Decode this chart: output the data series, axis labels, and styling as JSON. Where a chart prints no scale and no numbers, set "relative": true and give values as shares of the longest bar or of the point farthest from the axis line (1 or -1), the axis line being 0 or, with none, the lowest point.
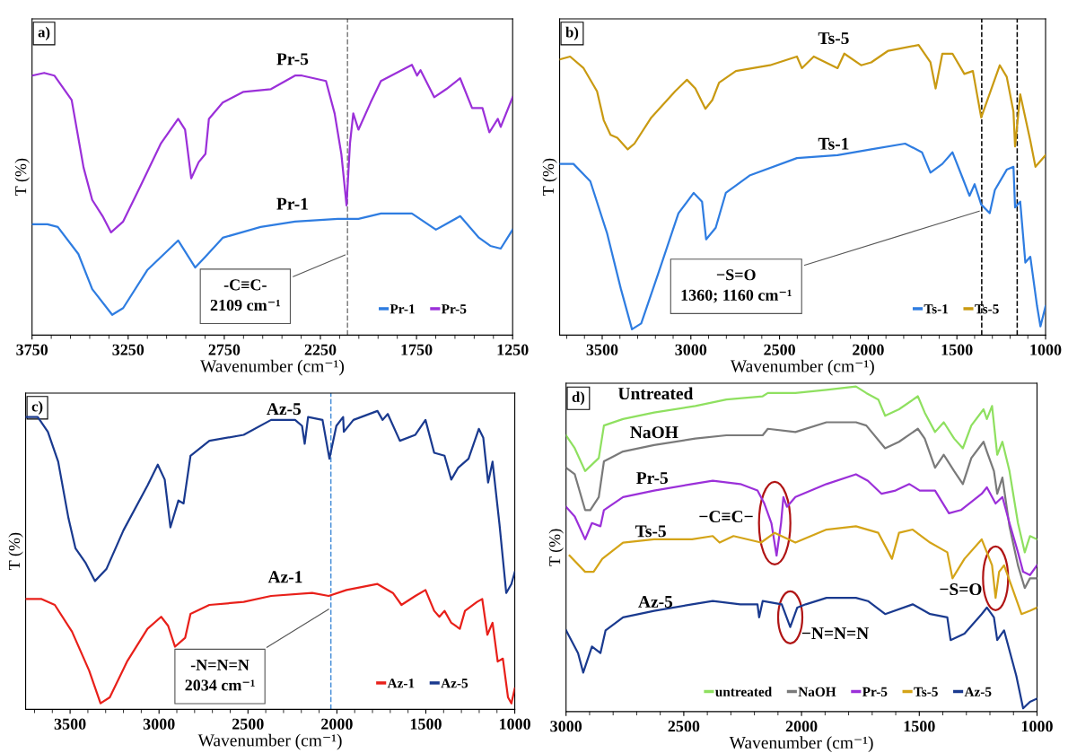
{
  "chart_data": [
    {
      "type": "line",
      "title": "a)",
      "xlabel": "Wavenumber (cm⁻¹)",
      "ylabel": "T (%)",
      "relative": true,
      "xlim": [
        3750,
        1250
      ],
      "xticks": [
        3750,
        3250,
        2750,
        2250,
        1750,
        1250
      ],
      "legend": "bottom right",
      "line_style": "solid",
      "series": [
        {
          "name": "Pr-1",
          "color": "#2f7de1",
          "x": [
            3750,
            3670,
            3616,
            3509,
            3437,
            3333,
            3276,
            3151,
            2990,
            2901,
            2848,
            2758,
            2561,
            2382,
            2159,
            2052,
            1935,
            1774,
            1649,
            1523,
            1425,
            1366,
            1312,
            1250
          ],
          "values": [
            0.41,
            0.41,
            0.4,
            0.3,
            0.17,
            0.075,
            0.1,
            0.24,
            0.35,
            0.25,
            0.29,
            0.36,
            0.4,
            0.42,
            0.43,
            0.43,
            0.45,
            0.45,
            0.39,
            0.44,
            0.36,
            0.33,
            0.32,
            0.39
          ]
        },
        {
          "name": "Pr-5",
          "color": "#9b30d9",
          "x": [
            3750,
            3687,
            3634,
            3544,
            3482,
            3437,
            3383,
            3339,
            3276,
            3187,
            3079,
            2990,
            2954,
            2922,
            2883,
            2848,
            2830,
            2758,
            2650,
            2507,
            2382,
            2346,
            2221,
            2176,
            2141,
            2114,
            2096,
            2079,
            2052,
            1989,
            1935,
            1774,
            1747,
            1729,
            1658,
            1595,
            1523,
            1461,
            1407,
            1371,
            1327,
            1312,
            1250
          ],
          "values": [
            0.96,
            0.97,
            0.96,
            0.87,
            0.62,
            0.5,
            0.44,
            0.38,
            0.42,
            0.55,
            0.71,
            0.8,
            0.76,
            0.58,
            0.64,
            0.67,
            0.8,
            0.86,
            0.9,
            0.91,
            0.96,
            0.96,
            0.94,
            0.82,
            0.67,
            0.48,
            0.71,
            0.82,
            0.76,
            0.86,
            0.94,
            1.0,
            0.96,
            0.98,
            0.88,
            0.91,
            0.95,
            0.84,
            0.84,
            0.75,
            0.8,
            0.77,
            0.88
          ]
        }
      ],
      "ref_lines": [
        {
          "axis": "x",
          "value": 2109,
          "color": "#808080",
          "line_style": "dashed"
        }
      ],
      "annotations": [
        "Pr-5",
        "Pr-1",
        {
          "text": "-C≡C-\n2109 cm⁻¹",
          "x": 2109,
          "y": 0.3
        }
      ]
    },
    {
      "type": "line",
      "title": "b)",
      "xlabel": "Wavenumber (cm⁻¹)",
      "ylabel": "T (%)",
      "relative": true,
      "xlim": [
        3740,
        1000
      ],
      "xticks": [
        3500,
        3000,
        2500,
        2000,
        1500,
        1000
      ],
      "legend": "bottom right",
      "line_style": "solid",
      "series": [
        {
          "name": "Ts-1",
          "color": "#2f7de1",
          "x": [
            3740,
            3662,
            3567,
            3472,
            3395,
            3332,
            3280,
            3185,
            3070,
            2984,
            2937,
            2914,
            2860,
            2803,
            2669,
            2402,
            2173,
            1983,
            1792,
            1697,
            1649,
            1582,
            1525,
            1467,
            1429,
            1400,
            1363,
            1315,
            1286,
            1219,
            1181,
            1172,
            1143,
            1114,
            1086,
            1048,
            1029,
            1000
          ],
          "values": [
            0.59,
            0.59,
            0.53,
            0.35,
            0.16,
            0.02,
            0.04,
            0.21,
            0.42,
            0.49,
            0.46,
            0.33,
            0.37,
            0.49,
            0.55,
            0.61,
            0.62,
            0.64,
            0.66,
            0.63,
            0.56,
            0.59,
            0.63,
            0.54,
            0.48,
            0.52,
            0.45,
            0.42,
            0.5,
            0.57,
            0.58,
            0.44,
            0.46,
            0.25,
            0.27,
            0.1,
            0.03,
            0.1
          ]
        },
        {
          "name": "Ts-5",
          "color": "#c99a12",
          "x": [
            3740,
            3681,
            3605,
            3529,
            3491,
            3453,
            3415,
            3356,
            3318,
            3223,
            3089,
            3022,
            2975,
            2918,
            2879,
            2841,
            2746,
            2554,
            2402,
            2374,
            2307,
            2173,
            2135,
            2040,
            1983,
            1887,
            1716,
            1649,
            1620,
            1582,
            1525,
            1458,
            1410,
            1363,
            1258,
            1219,
            1181,
            1172,
            1143,
            1086,
            1057,
            1000
          ],
          "values": [
            0.95,
            0.96,
            0.92,
            0.84,
            0.74,
            0.69,
            0.68,
            0.64,
            0.66,
            0.75,
            0.84,
            0.88,
            0.85,
            0.78,
            0.81,
            0.87,
            0.91,
            0.93,
            0.96,
            0.92,
            0.96,
            0.92,
            0.97,
            0.93,
            0.94,
            0.98,
            1.0,
            0.94,
            0.85,
            0.97,
            0.97,
            0.9,
            0.91,
            0.75,
            0.93,
            0.89,
            0.77,
            0.65,
            0.83,
            0.67,
            0.58,
            0.62
          ]
        }
      ],
      "ref_lines": [
        {
          "axis": "x",
          "value": 1360,
          "color": "#000000",
          "line_style": "dashed"
        },
        {
          "axis": "x",
          "value": 1160,
          "color": "#000000",
          "line_style": "dashed"
        }
      ],
      "annotations": [
        "Ts-5",
        "Ts-1",
        {
          "text": "−S=O\n1360; 1160 cm⁻¹",
          "x": 1360,
          "y": 0.43
        }
      ]
    },
    {
      "type": "line",
      "title": "c)",
      "xlabel": "Wavenumber (cm⁻¹)",
      "ylabel": "T (%)",
      "relative": true,
      "xlim": [
        3750,
        1000
      ],
      "xticks": [
        3500,
        3000,
        2500,
        2000,
        1500,
        1000
      ],
      "legend": "bottom right",
      "line_style": "solid",
      "series": [
        {
          "name": "Az-1",
          "color": "#e8201a",
          "x": [
            3750,
            3663,
            3586,
            3489,
            3393,
            3329,
            3277,
            3180,
            3065,
            2988,
            2949,
            2910,
            2853,
            2823,
            2717,
            2524,
            2370,
            2139,
            2046,
            1946,
            1772,
            1685,
            1637,
            1559,
            1502,
            1453,
            1424,
            1395,
            1357,
            1309,
            1280,
            1212,
            1183,
            1154,
            1125,
            1096,
            1067,
            1038,
            1019,
            1000
          ],
          "values": [
            0.37,
            0.37,
            0.35,
            0.26,
            0.13,
            0.02,
            0.04,
            0.16,
            0.27,
            0.31,
            0.28,
            0.21,
            0.24,
            0.32,
            0.35,
            0.36,
            0.38,
            0.39,
            0.38,
            0.4,
            0.42,
            0.39,
            0.35,
            0.38,
            0.4,
            0.33,
            0.31,
            0.33,
            0.29,
            0.27,
            0.33,
            0.36,
            0.37,
            0.25,
            0.29,
            0.16,
            0.17,
            0.04,
            0.02,
            0.07
          ]
        },
        {
          "name": "Az-5",
          "color": "#1a3a8f",
          "x": [
            3750,
            3682,
            3625,
            3567,
            3509,
            3470,
            3412,
            3360,
            3296,
            3200,
            3065,
            3007,
            2968,
            2936,
            2891,
            2862,
            2823,
            2717,
            2524,
            2370,
            2235,
            2196,
            2181,
            2162,
            2081,
            2042,
            2003,
            1965,
            1961,
            1907,
            1772,
            1743,
            1714,
            1646,
            1559,
            1502,
            1453,
            1395,
            1357,
            1318,
            1260,
            1202,
            1177,
            1150,
            1125,
            1086,
            1048,
            1019,
            1000
          ],
          "values": [
            0.98,
            0.98,
            0.93,
            0.83,
            0.64,
            0.54,
            0.49,
            0.43,
            0.47,
            0.6,
            0.75,
            0.82,
            0.77,
            0.61,
            0.7,
            0.69,
            0.85,
            0.9,
            0.92,
            0.97,
            0.97,
            0.95,
            0.89,
            0.98,
            0.97,
            0.84,
            0.95,
            0.98,
            0.93,
            0.97,
            1.0,
            0.97,
            0.99,
            0.9,
            0.92,
            0.97,
            0.86,
            0.85,
            0.77,
            0.81,
            0.84,
            0.94,
            0.91,
            0.76,
            0.83,
            0.62,
            0.39,
            0.42,
            0.46
          ]
        }
      ],
      "ref_lines": [
        {
          "axis": "x",
          "value": 2034,
          "color": "#4a90d9",
          "line_style": "dashed"
        }
      ],
      "annotations": [
        "Az-5",
        "Az-1",
        {
          "text": "-N=N=N\n2034 cm⁻¹",
          "x": 2034,
          "y": 0.34
        }
      ]
    },
    {
      "type": "line",
      "title": "d)",
      "xlabel": "Wavenumber (cm⁻¹)",
      "ylabel": "T (%)",
      "relative": true,
      "xlim": [
        3000,
        1000
      ],
      "xticks": [
        3000,
        2500,
        2000,
        1500,
        1000
      ],
      "legend": "bottom",
      "line_style": "solid",
      "series": [
        {
          "name": "untreated",
          "color": "#8fe060",
          "x": [
            3000,
            2963,
            2919,
            2861,
            2839,
            2758,
            2626,
            2451,
            2319,
            2165,
            2143,
            2026,
            1894,
            1769,
            1725,
            1674,
            1645,
            1586,
            1506,
            1477,
            1433,
            1396,
            1352,
            1315,
            1279,
            1227,
            1213,
            1191,
            1169,
            1147,
            1117,
            1081,
            1052,
            1030,
            1000
          ],
          "values": [
            0.85,
            0.81,
            0.74,
            0.78,
            0.88,
            0.9,
            0.92,
            0.94,
            0.96,
            0.97,
            0.98,
            0.98,
            0.99,
            1.0,
            0.98,
            0.96,
            0.91,
            0.93,
            0.97,
            0.92,
            0.86,
            0.89,
            0.84,
            0.81,
            0.88,
            0.93,
            0.9,
            0.94,
            0.79,
            0.83,
            0.74,
            0.58,
            0.49,
            0.54,
            0.53
          ]
        },
        {
          "name": "NaOH",
          "color": "#7a7a7a",
          "x": [
            3000,
            2963,
            2919,
            2897,
            2861,
            2839,
            2758,
            2626,
            2451,
            2319,
            2165,
            2143,
            2026,
            1894,
            1769,
            1725,
            1645,
            1586,
            1506,
            1477,
            1433,
            1396,
            1352,
            1315,
            1279,
            1227,
            1213,
            1183,
            1169,
            1147,
            1117,
            1081,
            1052,
            1030,
            1000
          ],
          "values": [
            0.75,
            0.73,
            0.62,
            0.62,
            0.66,
            0.77,
            0.8,
            0.82,
            0.84,
            0.85,
            0.85,
            0.87,
            0.86,
            0.89,
            0.89,
            0.88,
            0.81,
            0.83,
            0.87,
            0.84,
            0.75,
            0.79,
            0.74,
            0.7,
            0.78,
            0.83,
            0.8,
            0.74,
            0.67,
            0.72,
            0.57,
            0.45,
            0.38,
            0.41,
            0.41
          ]
        },
        {
          "name": "Pr-5",
          "color": "#9b30d9",
          "x": [
            3000,
            2963,
            2919,
            2890,
            2854,
            2839,
            2758,
            2626,
            2465,
            2377,
            2260,
            2187,
            2158,
            2128,
            2106,
            2087,
            2077,
            2062,
            2026,
            1894,
            1769,
            1718,
            1660,
            1601,
            1542,
            1498,
            1433,
            1374,
            1323,
            1235,
            1213,
            1176,
            1147,
            1117,
            1081,
            1059,
            1030,
            1000
          ],
          "values": [
            0.63,
            0.6,
            0.53,
            0.58,
            0.57,
            0.62,
            0.66,
            0.68,
            0.7,
            0.71,
            0.7,
            0.68,
            0.64,
            0.58,
            0.48,
            0.58,
            0.66,
            0.63,
            0.66,
            0.7,
            0.73,
            0.71,
            0.67,
            0.68,
            0.7,
            0.68,
            0.68,
            0.61,
            0.62,
            0.67,
            0.69,
            0.64,
            0.66,
            0.58,
            0.49,
            0.43,
            0.42,
            0.45
          ]
        },
        {
          "name": "Ts-5",
          "color": "#d4a418",
          "x": [
            2985,
            2919,
            2883,
            2846,
            2758,
            2626,
            2465,
            2377,
            2348,
            2289,
            2172,
            2114,
            2026,
            1894,
            1769,
            1674,
            1616,
            1586,
            1528,
            1454,
            1381,
            1359,
            1308,
            1235,
            1191,
            1176,
            1161,
            1140,
            1110,
            1066,
            1030,
            1000
          ],
          "values": [
            0.48,
            0.43,
            0.43,
            0.47,
            0.52,
            0.53,
            0.53,
            0.54,
            0.52,
            0.54,
            0.52,
            0.55,
            0.52,
            0.56,
            0.57,
            0.55,
            0.47,
            0.55,
            0.56,
            0.52,
            0.49,
            0.41,
            0.47,
            0.53,
            0.45,
            0.35,
            0.43,
            0.45,
            0.39,
            0.3,
            0.31,
            0.32
          ]
        },
        {
          "name": "Az-5",
          "color": "#1a3a8f",
          "x": [
            3000,
            2949,
            2927,
            2890,
            2854,
            2832,
            2758,
            2626,
            2465,
            2377,
            2260,
            2187,
            2180,
            2165,
            2084,
            2048,
            2018,
            1982,
            1894,
            1769,
            1718,
            1645,
            1528,
            1454,
            1381,
            1367,
            1308,
            1235,
            1213,
            1183,
            1169,
            1140,
            1088,
            1059,
            1030,
            1000
          ],
          "values": [
            0.25,
            0.18,
            0.12,
            0.2,
            0.18,
            0.25,
            0.29,
            0.31,
            0.33,
            0.34,
            0.33,
            0.33,
            0.29,
            0.34,
            0.33,
            0.26,
            0.32,
            0.33,
            0.35,
            0.35,
            0.34,
            0.3,
            0.33,
            0.3,
            0.29,
            0.22,
            0.24,
            0.3,
            0.32,
            0.29,
            0.22,
            0.25,
            0.11,
            0.01,
            0.03,
            0.04
          ]
        }
      ],
      "annotations": [
        "Untreated",
        "NaOH",
        "Pr-5",
        "Ts-5",
        "Az-5",
        {
          "text": "−C≡C−",
          "x": 2114,
          "y": 0.58
        },
        {
          "text": "−N=N=N",
          "x": 2048,
          "y": 0.29
        },
        {
          "text": "−S=O",
          "x": 1176,
          "y": 0.41
        }
      ]
    }
  ]
}
